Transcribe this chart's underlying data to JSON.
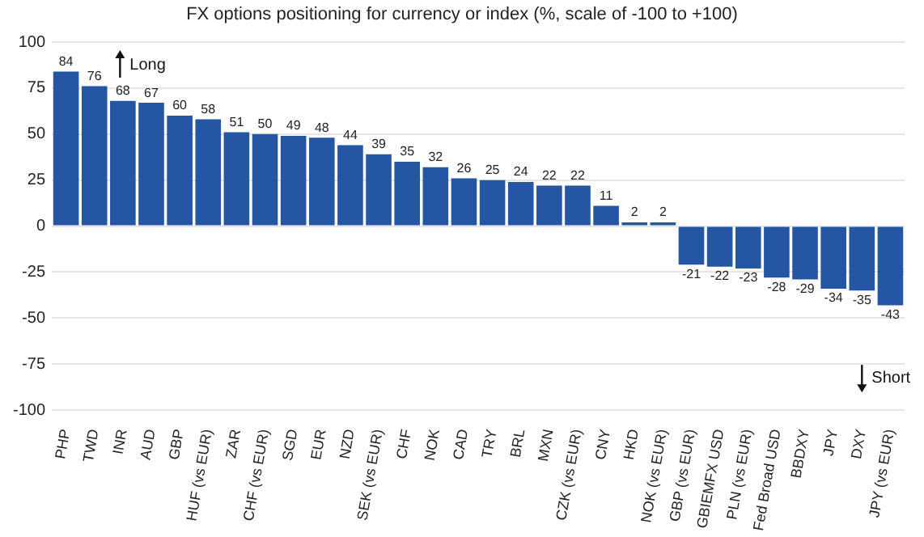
{
  "chart_data": {
    "type": "bar",
    "title": "FX options positioning for currency or index (%, scale of -100 to +100)",
    "categories": [
      "PHP",
      "TWD",
      "INR",
      "AUD",
      "GBP",
      "HUF (vs EUR)",
      "ZAR",
      "CHF (vs EUR)",
      "SGD",
      "EUR",
      "NZD",
      "SEK (vs EUR)",
      "CHF",
      "NOK",
      "CAD",
      "TRY",
      "BRL",
      "MXN",
      "CZK (vs EUR)",
      "CNY",
      "HKD",
      "NOK (vs EUR)",
      "GBP (vs EUR)",
      "GBIEMFX USD",
      "PLN (vs EUR)",
      "Fed Broad USD",
      "BBDXY",
      "JPY",
      "DXY",
      "JPY (vs EUR)"
    ],
    "values": [
      84,
      76,
      68,
      67,
      60,
      58,
      51,
      50,
      49,
      48,
      44,
      39,
      35,
      32,
      26,
      25,
      24,
      22,
      22,
      11,
      2,
      2,
      -21,
      -22,
      -23,
      -28,
      -29,
      -34,
      -35,
      -43
    ],
    "color": "#2456a4",
    "ylim": [
      -100,
      100
    ],
    "yticks": [
      -100,
      -75,
      -50,
      -25,
      0,
      25,
      50,
      75,
      100
    ],
    "grid": "y",
    "data_labels": true,
    "annotations": [
      "Long",
      "Short"
    ]
  }
}
